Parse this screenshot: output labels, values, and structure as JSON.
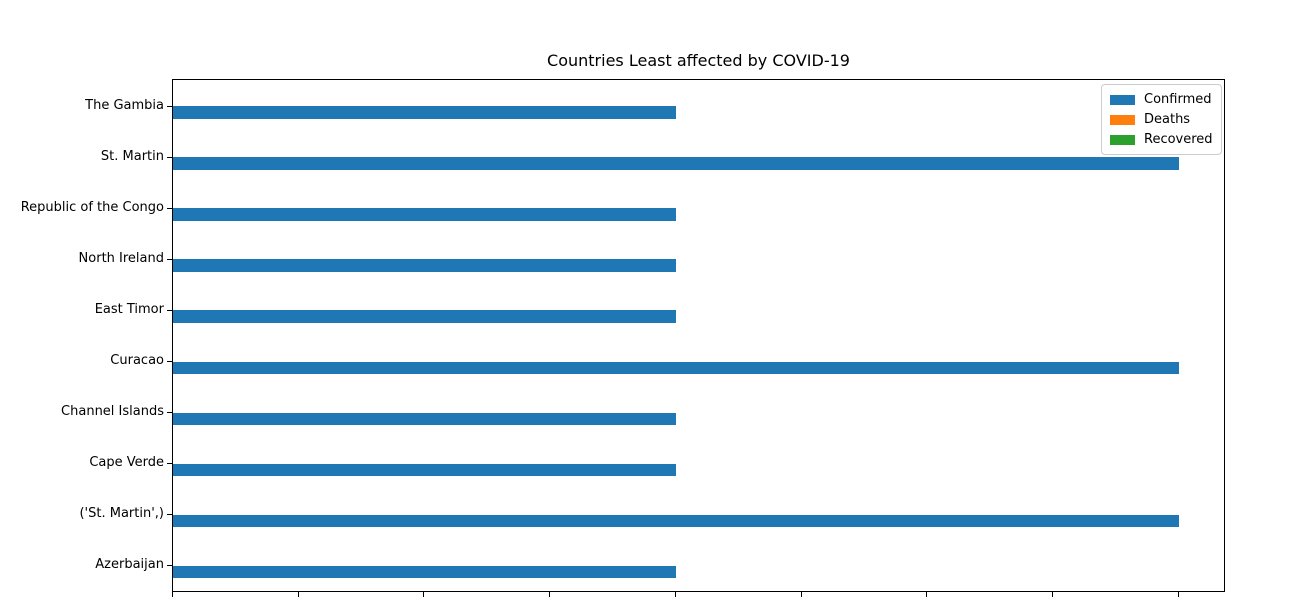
{
  "chart_data": {
    "type": "bar",
    "orientation": "horizontal",
    "title": "Countries Least affected by COVID-19",
    "categories": [
      "The Gambia",
      "St. Martin",
      "Republic of the Congo",
      "North Ireland",
      "East Timor",
      "Curacao",
      "Channel Islands",
      "Cape Verde",
      "('St. Martin',)",
      "Azerbaijan"
    ],
    "series": [
      {
        "name": "Confirmed",
        "color": "#1f77b4",
        "values": [
          1,
          2,
          1,
          1,
          1,
          2,
          1,
          1,
          2,
          1
        ]
      },
      {
        "name": "Deaths",
        "color": "#ff7f0e",
        "values": [
          0,
          0,
          0,
          0,
          0,
          0,
          0,
          0,
          0,
          0
        ]
      },
      {
        "name": "Recovered",
        "color": "#2ca02c",
        "values": [
          0,
          0,
          0,
          0,
          0,
          0,
          0,
          0,
          0,
          0
        ]
      }
    ],
    "xlabel": "",
    "ylabel": "",
    "xlim": [
      0,
      2.09
    ],
    "xticks": [
      0,
      0.25,
      0.5,
      0.75,
      1.0,
      1.25,
      1.5,
      1.75,
      2.0
    ],
    "xtick_labels_cut_off": true,
    "grid": false,
    "legend_position": "upper-right",
    "colors": {
      "spine": "#000000",
      "background": "#ffffff"
    }
  }
}
